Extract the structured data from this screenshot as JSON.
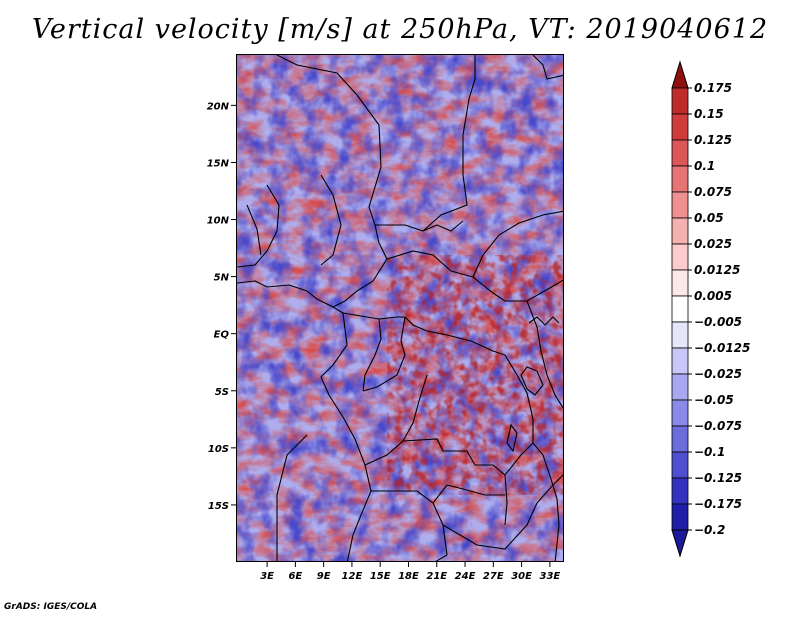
{
  "title": "Vertical velocity [m/s] at 250hPa, VT: 2019040612",
  "credit": "GrADS: IGES/COLA",
  "map": {
    "lat_range": [
      -20,
      24.5
    ],
    "lon_range": [
      -0.3,
      34.5
    ],
    "lat_ticks": [
      {
        "value": 20,
        "label": "20N"
      },
      {
        "value": 15,
        "label": "15N"
      },
      {
        "value": 10,
        "label": "10N"
      },
      {
        "value": 5,
        "label": "5N"
      },
      {
        "value": 0,
        "label": "EQ"
      },
      {
        "value": -5,
        "label": "5S"
      },
      {
        "value": -10,
        "label": "10S"
      },
      {
        "value": -15,
        "label": "15S"
      }
    ],
    "lon_ticks": [
      {
        "value": 3,
        "label": "3E"
      },
      {
        "value": 6,
        "label": "6E"
      },
      {
        "value": 9,
        "label": "9E"
      },
      {
        "value": 12,
        "label": "12E"
      },
      {
        "value": 15,
        "label": "15E"
      },
      {
        "value": 18,
        "label": "18E"
      },
      {
        "value": 21,
        "label": "21E"
      },
      {
        "value": 24,
        "label": "24E"
      },
      {
        "value": 27,
        "label": "27E"
      },
      {
        "value": 30,
        "label": "30E"
      },
      {
        "value": 33,
        "label": "33E"
      }
    ]
  },
  "colorbar": {
    "levels": [
      {
        "label": "0.175",
        "color": "#a31a1a"
      },
      {
        "label": "0.15",
        "color": "#bf2b2b"
      },
      {
        "label": "0.125",
        "color": "#d03c3c"
      },
      {
        "label": "0.1",
        "color": "#dc5858"
      },
      {
        "label": "0.075",
        "color": "#e67474"
      },
      {
        "label": "0.05",
        "color": "#ee9090"
      },
      {
        "label": "0.025",
        "color": "#f5b0b0"
      },
      {
        "label": "0.0125",
        "color": "#facccc"
      },
      {
        "label": "0.005",
        "color": "#fde8e8"
      },
      {
        "label": "-0.005",
        "color": "#ffffff"
      },
      {
        "label": "-0.0125",
        "color": "#e6e6fb"
      },
      {
        "label": "-0.025",
        "color": "#c8c8f6"
      },
      {
        "label": "-0.05",
        "color": "#a8a8f0"
      },
      {
        "label": "-0.075",
        "color": "#8a8ae8"
      },
      {
        "label": "-0.1",
        "color": "#6c6cdd"
      },
      {
        "label": "-0.125",
        "color": "#4e4ed0"
      },
      {
        "label": "-0.175",
        "color": "#3232bf"
      },
      {
        "label": "-0.2",
        "color": "#1e1ea8"
      }
    ],
    "top_triangle_color": "#8e1010",
    "bottom_triangle_color": "#1a1a9a"
  }
}
